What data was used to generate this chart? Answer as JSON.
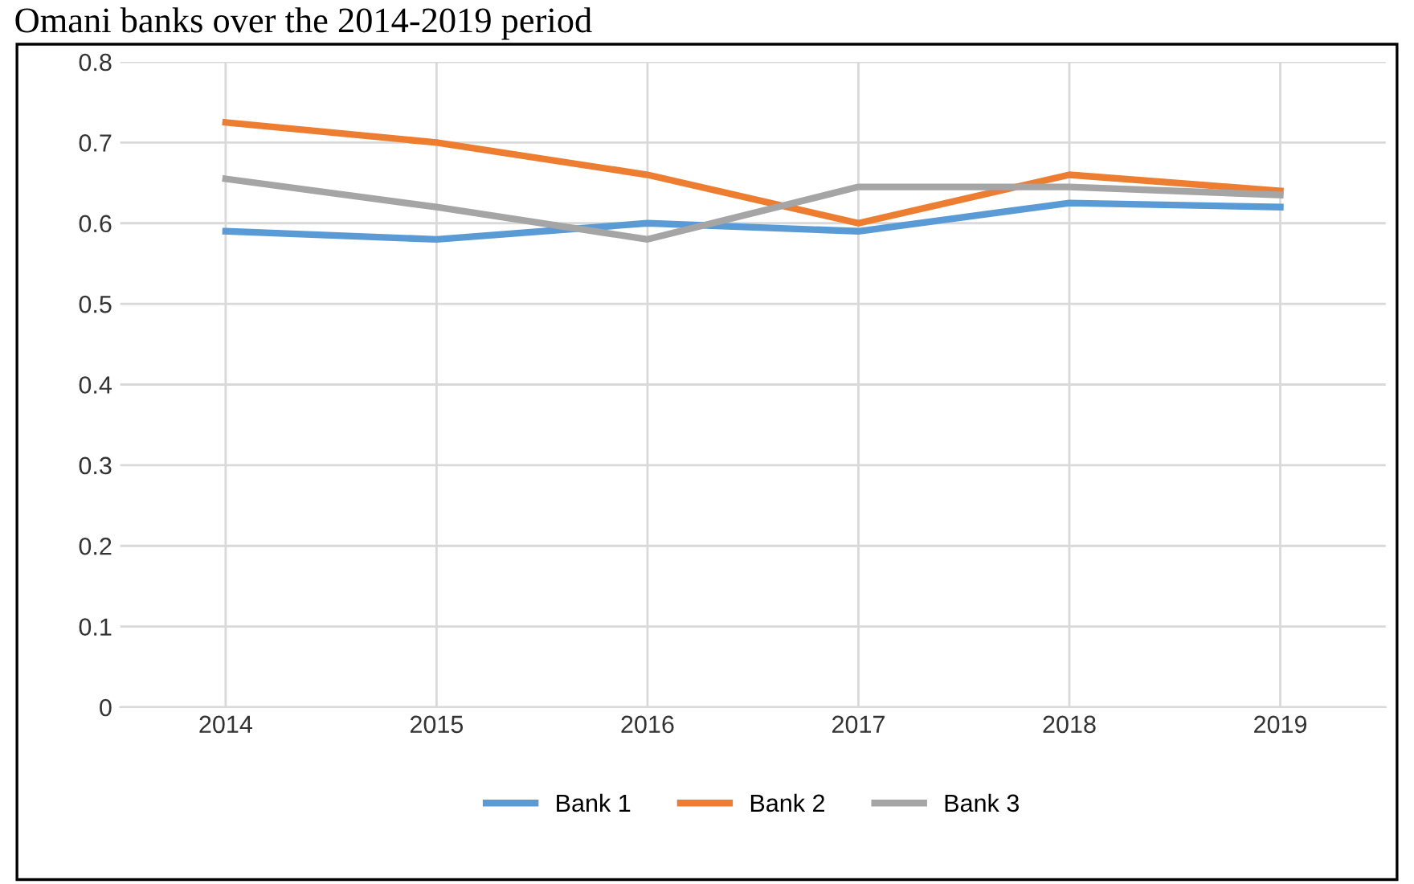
{
  "chart_data": {
    "type": "line",
    "title": "Omani banks over the 2014-2019 period",
    "categories": [
      "2014",
      "2015",
      "2016",
      "2017",
      "2018",
      "2019"
    ],
    "series": [
      {
        "name": "Bank 1",
        "color": "#5b9bd5",
        "values": [
          0.59,
          0.58,
          0.6,
          0.59,
          0.625,
          0.62
        ]
      },
      {
        "name": "Bank 2",
        "color": "#ed7d31",
        "values": [
          0.725,
          0.7,
          0.66,
          0.6,
          0.66,
          0.64
        ]
      },
      {
        "name": "Bank 3",
        "color": "#a5a5a5",
        "values": [
          0.655,
          0.62,
          0.58,
          0.645,
          0.645,
          0.635
        ]
      }
    ],
    "ylim": [
      0,
      0.8
    ],
    "yticks": [
      0,
      0.1,
      0.2,
      0.3,
      0.4,
      0.5,
      0.6,
      0.7,
      0.8
    ],
    "grid": true,
    "legend": "bottom",
    "marker": "none",
    "line_style": "solid"
  }
}
